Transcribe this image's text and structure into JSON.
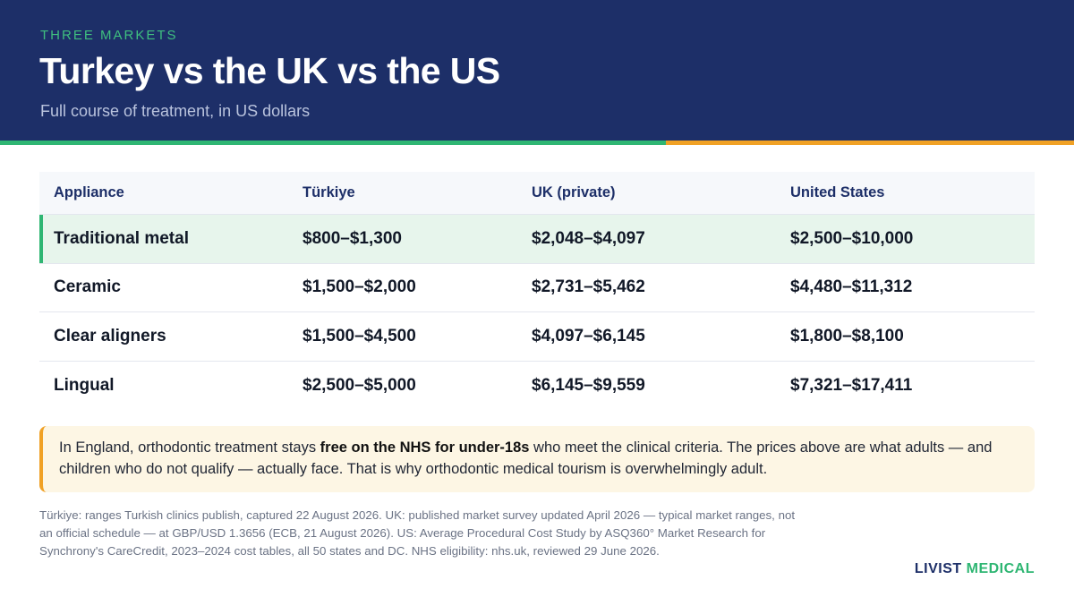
{
  "header": {
    "eyebrow": "THREE MARKETS",
    "title": "Turkey vs the UK vs the US",
    "subtitle": "Full course of treatment, in US dollars"
  },
  "table": {
    "columns": [
      "Appliance",
      "Türkiye",
      "UK (private)",
      "United States"
    ],
    "rows": [
      [
        "Traditional metal",
        "$800–$1,300",
        "$2,048–$4,097",
        "$2,500–$10,000"
      ],
      [
        "Ceramic",
        "$1,500–$2,000",
        "$2,731–$5,462",
        "$4,480–$11,312"
      ],
      [
        "Clear aligners",
        "$1,500–$4,500",
        "$4,097–$6,145",
        "$1,800–$8,100"
      ],
      [
        "Lingual",
        "$2,500–$5,000",
        "$6,145–$9,559",
        "$7,321–$17,411"
      ]
    ]
  },
  "note": {
    "before": "In England, orthodontic treatment stays ",
    "bold": "free on the NHS for under-18s",
    "after": " who meet the clinical criteria. The prices above are what adults — and children who do not qualify — actually face. That is why orthodontic medical tourism is overwhelmingly adult."
  },
  "sources": "Türkiye: ranges Turkish clinics publish, captured 22 August 2026. UK: published market survey updated April 2026 — typical market ranges, not an official schedule — at GBP/USD 1.3656 (ECB, 21 August 2026). US: Average Procedural Cost Study by ASQ360° Market Research for Synchrony's CareCredit, 2023–2024 cost tables, all 50 states and DC. NHS eligibility: nhs.uk, reviewed 29 June 2026.",
  "brand": {
    "part1": "LIVIST",
    "part2": "MEDICAL"
  },
  "colors": {
    "navy": "#1d2f68",
    "green": "#2fb673",
    "orange": "#f0a125"
  }
}
